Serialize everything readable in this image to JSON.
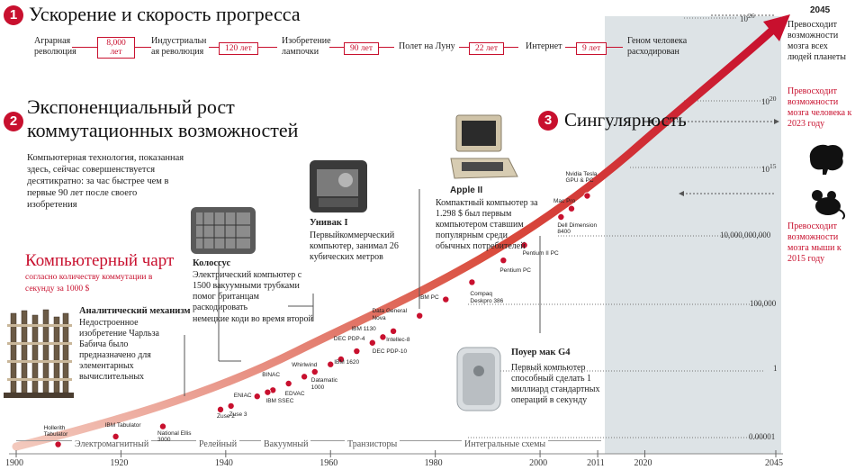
{
  "section1": {
    "num": "1",
    "title": "Ускорение и скорость прогресса"
  },
  "timeline": {
    "items": [
      "Аграрная революция",
      "Индустриальн ая революция",
      "Изобретение лампочки",
      "Полет на Луну",
      "Интернет",
      "Геном человека расходирован"
    ],
    "gaps": [
      "8,000 лет",
      "120 лет",
      "90 лет",
      "22 лет",
      "9 лет"
    ]
  },
  "section2": {
    "num": "2",
    "title_line1": "Экспоненциальный рост",
    "title_line2": "коммутационных возможностей",
    "desc": "Компьютерная технология, показанная здесь, сейчас совершенствуется десятикратно: за час быстрее чем в первые 90 лет после своего изобретения"
  },
  "section3": {
    "num": "3",
    "title": "Сингулярность"
  },
  "chart_title": {
    "main": "Компьютерный чарт",
    "sub1": "согласно количеству коммутации в",
    "sub2": "секунду за 1000 $"
  },
  "callouts": {
    "analytic": {
      "title": "Аналитический механизм",
      "text": "Недостроенное изобретение Чарльза Бабича было предназначено для элементарных вычислительных"
    },
    "colossus": {
      "title": "Колоссус",
      "text": "Электрический компьютер с 1500 вакуумными трубками помог британцам раскодировать",
      "text2": "немецкие коди во время второй"
    },
    "univac": {
      "title": "Унивак I",
      "text": "Первыйкоммерческий компьютер, занимал 26 кубических метров"
    },
    "apple": {
      "title": "Apple II",
      "text": "Компактный компьютер за 1.298 $ был первым компьютером ставшим популярным среди обычных потребителей"
    },
    "g4": {
      "title": "Поуер мак G4",
      "text": "Первый компьютер способный сделать 1 миллиард стандартных операций в секунду"
    }
  },
  "right_panel": {
    "year": "2045",
    "all_people": "Превосходит возможности мозга всех людей планеты",
    "human": "Превосходит возможности мозга человека к 2023 году",
    "mouse": "Превосходит возможности мозга мыши к 2015 году",
    "brain_icon": "brain-icon",
    "mouse_icon": "mouse-icon"
  },
  "y_axis_labels": [
    "10^26",
    "10^20",
    "10^15",
    "10,000,000,000",
    "100,000",
    "1",
    "0.00001"
  ],
  "x_axis": {
    "ticks": [
      "1900",
      "1920",
      "1940",
      "1960",
      "1980",
      "2000",
      "2011",
      "2020",
      "2045"
    ]
  },
  "eras": [
    "Электромагнитный",
    "Релейный",
    "Вакуумный",
    "Транзисторы",
    "Интегральные схемы"
  ],
  "machines": [
    {
      "label": "Hollerith Tabulator",
      "year": 1908
    },
    {
      "label": "IBM Tabulator",
      "year": 1919
    },
    {
      "label": "National Ellis 3000",
      "year": 1928
    },
    {
      "label": "Zuse 2",
      "year": 1939
    },
    {
      "label": "Zuse 3",
      "year": 1941
    },
    {
      "label": "ENIAC",
      "year": 1946
    },
    {
      "label": "BINAC",
      "year": 1949
    },
    {
      "label": "IBM SSEC",
      "year": 1948
    },
    {
      "label": "EDVAC",
      "year": 1952
    },
    {
      "label": "Whirlwind",
      "year": 1955
    },
    {
      "label": "Datamatic 1000",
      "year": 1957
    },
    {
      "label": "IBM 1620",
      "year": 1960
    },
    {
      "label": "DEC PDP-4",
      "year": 1962
    },
    {
      "label": "IBM 1130",
      "year": 1965
    },
    {
      "label": "DEC PDP-10",
      "year": 1968
    },
    {
      "label": "Data General Nova",
      "year": 1970
    },
    {
      "label": "Intellec-8",
      "year": 1972
    },
    {
      "label": "Apple II",
      "year": 1977
    },
    {
      "label": "IBM PC",
      "year": 1982
    },
    {
      "label": "Compaq Deskpro 386",
      "year": 1987
    },
    {
      "label": "Pentium PC",
      "year": 1993
    },
    {
      "label": "Pentium II PC",
      "year": 1997
    },
    {
      "label": "Dell Dimension 8400",
      "year": 2004
    },
    {
      "label": "Mac Pro",
      "year": 2006
    },
    {
      "label": "Nvidia Tesla GPU & PC",
      "year": 2009
    }
  ]
}
